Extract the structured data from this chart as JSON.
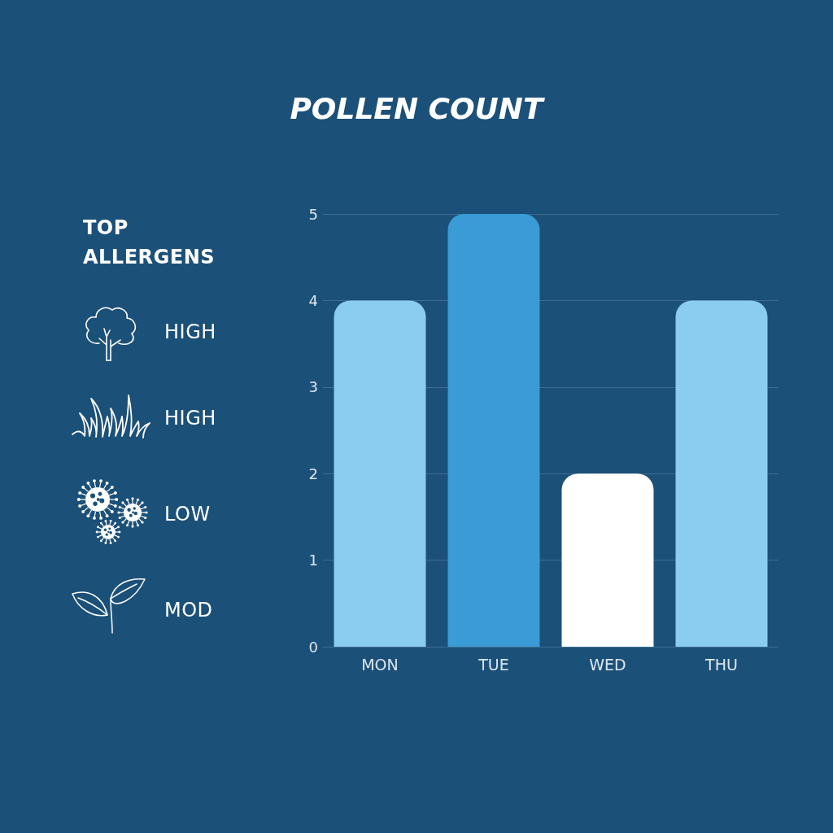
{
  "chart_data": {
    "type": "bar",
    "title": "POLLEN COUNT",
    "categories": [
      "MON",
      "TUE",
      "WED",
      "THU"
    ],
    "values": [
      4,
      5,
      2,
      4
    ],
    "colors": [
      "#8bcdf1",
      "#3a9bd7",
      "#ffffff",
      "#8bcdf1"
    ],
    "ylim": [
      0,
      5
    ],
    "yticks": [
      0,
      1,
      2,
      3,
      4,
      5
    ],
    "grid": "y",
    "annotations": [
      "TOP ALLERGENS",
      "HIGH",
      "HIGH",
      "LOW",
      "MOD"
    ]
  }
}
